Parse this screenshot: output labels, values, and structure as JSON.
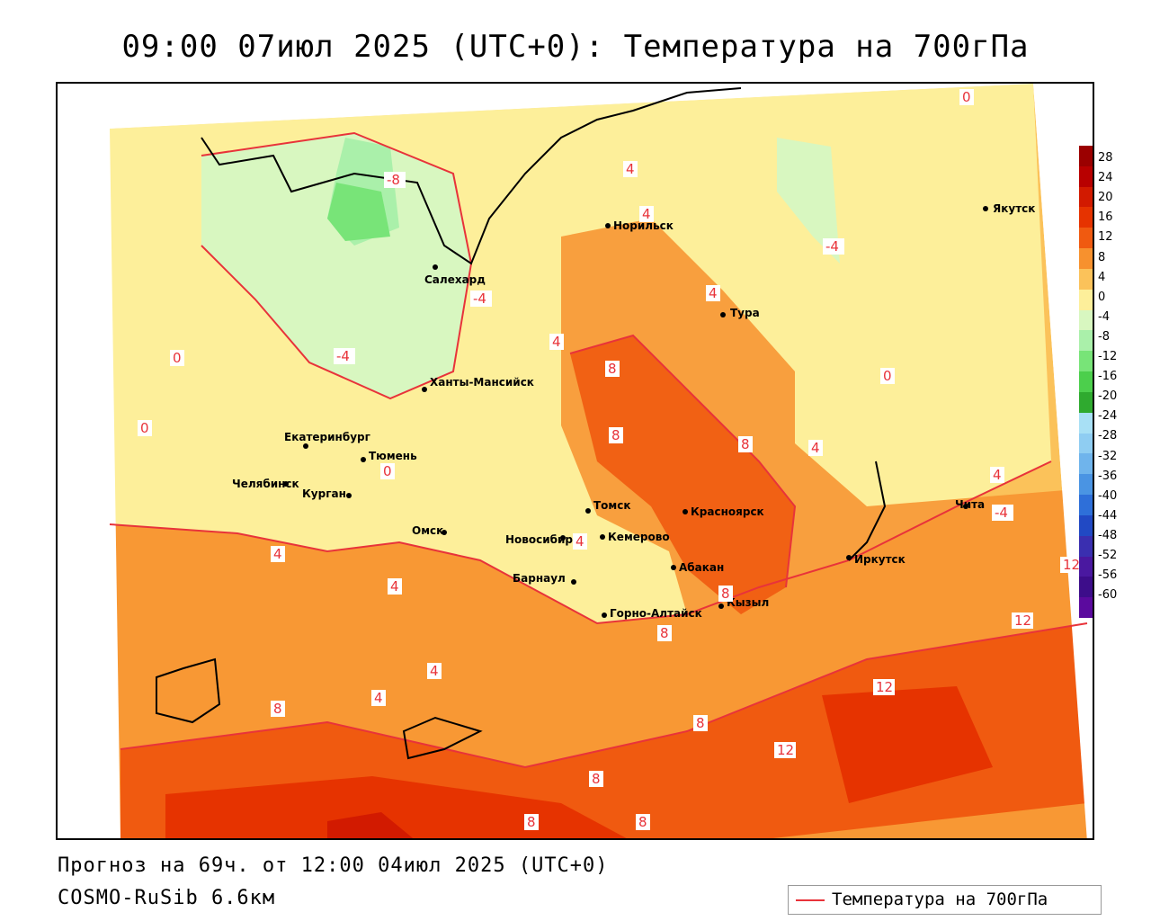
{
  "title": "09:00 07июл 2025 (UTC+0): Температура на 700гПа",
  "footer": {
    "forecast": "Прогноз на 69ч. от 12:00 04июл 2025 (UTC+0)",
    "model": "COSMO-RuSib 6.6км"
  },
  "legend": {
    "label": "Температура на 700гПа",
    "color": "#e8333a"
  },
  "colorbar": {
    "ticks": [
      "28",
      "24",
      "20",
      "16",
      "12",
      "8",
      "4",
      "0",
      "-4",
      "-8",
      "-12",
      "-16",
      "-20",
      "-24",
      "-28",
      "-32",
      "-36",
      "-40",
      "-44",
      "-48",
      "-52",
      "-56",
      "-60"
    ],
    "colors": [
      "#9b0000",
      "#b80000",
      "#d21a00",
      "#e63300",
      "#f05a10",
      "#f7912e",
      "#fbc25a",
      "#fdef9a",
      "#d8f7c0",
      "#aaf0aa",
      "#78e478",
      "#4ccf4c",
      "#2faa2f",
      "#a8e0f5",
      "#8fcdf2",
      "#6fb4ec",
      "#4a94e3",
      "#2e6fd9",
      "#2149c4",
      "#3a2fb0",
      "#4a18a0",
      "#3d0d8a",
      "#5b0a9e"
    ]
  },
  "cities": [
    {
      "name": "Якутск"
    },
    {
      "name": "Норильск"
    },
    {
      "name": "Салехард"
    },
    {
      "name": "Тура"
    },
    {
      "name": "Ханты-Мансийск"
    },
    {
      "name": "Екатеринбург"
    },
    {
      "name": "Тюмень"
    },
    {
      "name": "Челябинск"
    },
    {
      "name": "Курган"
    },
    {
      "name": "Омск"
    },
    {
      "name": "Новосибирск"
    },
    {
      "name": "Томск"
    },
    {
      "name": "Кемерово"
    },
    {
      "name": "Красноярск"
    },
    {
      "name": "Абакан"
    },
    {
      "name": "Барнаул"
    },
    {
      "name": "Горно-Алтайск"
    },
    {
      "name": "Кызыл"
    },
    {
      "name": "Иркутск"
    },
    {
      "name": "Чита"
    }
  ],
  "isolines": [
    "0",
    "-8",
    "4",
    "4",
    "-4",
    "-4",
    "0",
    "4",
    "4",
    "8",
    "8",
    "8",
    "4",
    "0",
    "4",
    "0",
    "0",
    "-4",
    "4",
    "4",
    "4",
    "4",
    "4",
    "8",
    "8",
    "8",
    "8",
    "12",
    "12",
    "12",
    "8",
    "12",
    "8",
    "8",
    "-4"
  ]
}
